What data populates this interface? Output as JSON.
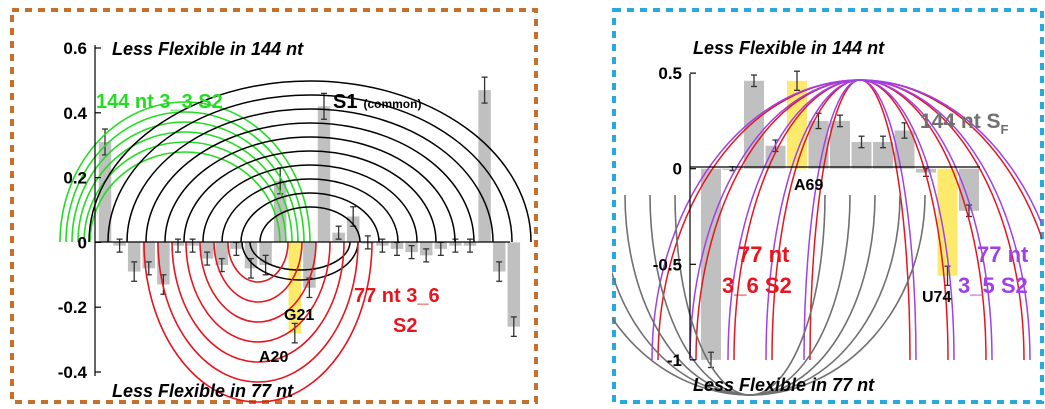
{
  "colors": {
    "bar": "#c0c0c0",
    "highlight": "#fde96b",
    "error": "#333333",
    "left_frame": "#c8702a",
    "right_frame": "#29a8e0",
    "green": "#22dd22",
    "black": "#000000",
    "red": "#e8141e",
    "purple": "#a040e8",
    "gray_arc": "#707070"
  },
  "chart_data": [
    {
      "type": "bar",
      "title": "",
      "top_label": "Less Flexible in 144 nt",
      "bottom_label": "Less Flexible in 77 nt",
      "ylim": [
        -0.4,
        0.6
      ],
      "yticks": [
        "0.6",
        "0.4",
        "0.2",
        "0",
        "-0.2",
        "-0.4"
      ],
      "grid": false,
      "values": [
        0.31,
        -0.01,
        -0.09,
        -0.08,
        -0.13,
        -0.01,
        -0.01,
        -0.05,
        -0.07,
        -0.02,
        -0.08,
        -0.07,
        0.19,
        -0.28,
        -0.14,
        0.42,
        0.03,
        0.08,
        0.0,
        -0.01,
        -0.02,
        -0.03,
        -0.04,
        -0.02,
        -0.01,
        -0.01,
        0.47,
        -0.09,
        -0.26
      ],
      "errors": [
        0.04,
        0.02,
        0.03,
        0.02,
        0.03,
        0.02,
        0.02,
        0.02,
        0.02,
        0.02,
        0.03,
        0.03,
        0.04,
        0.03,
        0.03,
        0.04,
        0.02,
        0.03,
        0.02,
        0.02,
        0.02,
        0.02,
        0.02,
        0.02,
        0.02,
        0.02,
        0.04,
        0.03,
        0.03
      ],
      "highlighted_index": 13,
      "annotations": {
        "green": "144 nt 3_3 S2",
        "black_main": "S1",
        "black_sub": "(common)",
        "red_line1": "77 nt 3_6",
        "red_line2": "S2",
        "g21": "G21",
        "a20": "A20"
      }
    },
    {
      "type": "bar",
      "title": "",
      "top_label": "Less Flexible in 144 nt",
      "bottom_label": "Less Flexible in 77 nt",
      "ylim": [
        -1.1,
        0.6
      ],
      "yticks": [
        "0.5",
        "0",
        "-0.5",
        "-1"
      ],
      "grid": false,
      "values": [
        -1.0,
        0.0,
        0.46,
        0.12,
        0.46,
        0.25,
        0.25,
        0.14,
        0.14,
        0.2,
        -0.02,
        -0.56,
        -0.22
      ],
      "errors": [
        0.04,
        0.01,
        0.03,
        0.03,
        0.05,
        0.04,
        0.03,
        0.03,
        0.03,
        0.04,
        0.02,
        0.05,
        0.03
      ],
      "highlighted_indices": [
        4,
        11
      ],
      "annotations": {
        "gray_main": "144 nt S",
        "gray_sub": "F",
        "red_line1": "77 nt",
        "red_line2": "3_6 S2",
        "purple_line1": "77 nt",
        "purple_line2": "3_5 S2",
        "a69": "A69",
        "u74": "U74"
      }
    }
  ]
}
